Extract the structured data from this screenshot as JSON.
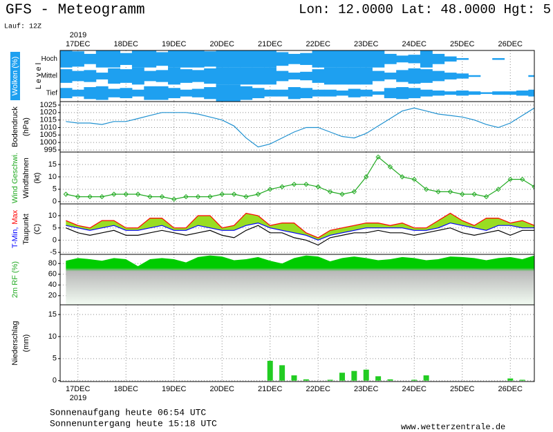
{
  "header": {
    "title": "GFS - Meteogramm",
    "location": "Lon: 12.0000 Lat: 48.0000 Hgt: 5",
    "run": "Lauf: 12Z"
  },
  "footer": {
    "sunrise": "Sonnenaufgang heute 06:54 UTC",
    "sunset": "Sonnenuntergang heute 15:18 UTC",
    "source": "www.wetterzentrale.de"
  },
  "time_axis": {
    "year": "2019",
    "xlim": [
      16.63,
      26.5
    ],
    "xticks": [
      {
        "value": 17,
        "label": "17DEC"
      },
      {
        "value": 18,
        "label": "18DEC"
      },
      {
        "value": 19,
        "label": "19DEC"
      },
      {
        "value": 20,
        "label": "20DEC"
      },
      {
        "value": 21,
        "label": "21DEC"
      },
      {
        "value": 22,
        "label": "22DEC"
      },
      {
        "value": 23,
        "label": "23DEC"
      },
      {
        "value": 24,
        "label": "24DEC"
      },
      {
        "value": 25,
        "label": "25DEC"
      },
      {
        "value": 26,
        "label": "26DEC"
      }
    ],
    "x": [
      16.75,
      17,
      17.25,
      17.5,
      17.75,
      18,
      18.25,
      18.5,
      18.75,
      19,
      19.25,
      19.5,
      19.75,
      20,
      20.25,
      20.5,
      20.75,
      21,
      21.25,
      21.5,
      21.75,
      22,
      22.25,
      22.5,
      22.75,
      23,
      23.25,
      23.5,
      23.75,
      24,
      24.25,
      24.5,
      24.75,
      25,
      25.25,
      25.5,
      25.75,
      26,
      26.25,
      26.5
    ]
  },
  "chart_data": [
    {
      "type": "cloud",
      "ylabel": [
        [
          {
            "text": "Wolken (%)",
            "color": "#ffffff",
            "background": "#1ea0f0"
          }
        ]
      ],
      "level_title": "L e v e l",
      "color": "#1ea0f0",
      "levels": [
        {
          "name": "Hoch",
          "values": [
            100,
            90,
            60,
            100,
            100,
            70,
            100,
            100,
            80,
            100,
            100,
            100,
            90,
            100,
            100,
            100,
            100,
            100,
            80,
            60,
            70,
            100,
            100,
            100,
            100,
            100,
            100,
            60,
            40,
            50,
            100,
            60,
            30,
            10,
            0,
            0,
            10,
            0,
            0,
            0
          ]
        },
        {
          "name": "Mittel",
          "values": [
            80,
            60,
            70,
            40,
            90,
            80,
            100,
            60,
            70,
            100,
            80,
            70,
            90,
            100,
            100,
            100,
            100,
            100,
            60,
            40,
            50,
            80,
            100,
            100,
            100,
            100,
            60,
            40,
            70,
            90,
            80,
            60,
            40,
            30,
            10,
            0,
            0,
            0,
            0,
            10
          ]
        },
        {
          "name": "Tief",
          "values": [
            60,
            40,
            70,
            80,
            50,
            60,
            40,
            80,
            80,
            60,
            40,
            50,
            70,
            100,
            100,
            80,
            60,
            40,
            40,
            70,
            60,
            40,
            40,
            30,
            50,
            40,
            20,
            60,
            70,
            60,
            40,
            30,
            20,
            30,
            20,
            10,
            20,
            20,
            30,
            40
          ]
        }
      ]
    },
    {
      "type": "line",
      "ylabel": [
        [
          {
            "text": "Bodendruck"
          }
        ],
        [
          {
            "text": "(hPa)"
          }
        ]
      ],
      "ylim": [
        993.6,
        1027.3
      ],
      "yticks": [
        995,
        1000,
        1005,
        1010,
        1015,
        1020,
        1025
      ],
      "grid": true,
      "series": [
        {
          "color": "#1e90d0",
          "values": [
            1014,
            1013,
            1013,
            1012,
            1014,
            1014,
            1016,
            1018,
            1020,
            1020,
            1020,
            1019,
            1017,
            1015,
            1011,
            1003,
            997,
            999,
            1003,
            1007,
            1010,
            1010,
            1007,
            1004,
            1003,
            1006,
            1011,
            1016,
            1021,
            1023,
            1021,
            1019,
            1018,
            1017,
            1015,
            1012,
            1010,
            1013,
            1018,
            1023
          ]
        }
      ]
    },
    {
      "type": "line",
      "ylabel": [
        [
          {
            "text": "Wind Geschwi.",
            "color": "#22aa22"
          }
        ],
        [
          {
            "text": "Windfahnen"
          }
        ],
        [
          {
            "text": "(kt)"
          }
        ]
      ],
      "ylim": [
        -0.9,
        20
      ],
      "yticks": [
        0,
        5,
        10,
        15
      ],
      "grid": true,
      "series": [
        {
          "color": "#22aa22",
          "marker": "diamond",
          "values": [
            3,
            2,
            2,
            2,
            3,
            3,
            3,
            2,
            2,
            1,
            2,
            2,
            2,
            3,
            3,
            2,
            3,
            5,
            6,
            7,
            7,
            6,
            4,
            3,
            4,
            10,
            18,
            14,
            10,
            9,
            5,
            4,
            4,
            3,
            3,
            2,
            5,
            9,
            9,
            6
          ]
        }
      ]
    },
    {
      "type": "range",
      "ylabel": [
        [
          {
            "text": "T-Min,",
            "color": "#0000ff"
          },
          {
            "text": "Max",
            "color": "#ff0000"
          }
        ],
        [
          {
            "text": "Taupunkt"
          }
        ],
        [
          {
            "text": "(C)"
          }
        ]
      ],
      "ylim": [
        -5.8,
        14.8
      ],
      "yticks": [
        -5,
        0,
        5,
        10
      ],
      "grid": true,
      "fill_between": [
        0,
        1
      ],
      "fill_color": "#99dd22",
      "series": [
        {
          "color": "#ff0000",
          "values": [
            8,
            6,
            5,
            8,
            8,
            5,
            5,
            9,
            9,
            5,
            5,
            10,
            10,
            5,
            6,
            11,
            10,
            6,
            7,
            7,
            3,
            1,
            4,
            5,
            6,
            7,
            7,
            6,
            7,
            5,
            5,
            8,
            11,
            8,
            6,
            9,
            9,
            7,
            8,
            6
          ]
        },
        {
          "color": "#0000ff",
          "values": [
            6,
            5,
            4,
            5,
            6,
            4,
            4,
            5,
            6,
            4,
            4,
            6,
            5,
            4,
            4,
            6,
            7,
            5,
            4,
            3,
            2,
            0,
            2,
            3,
            4,
            5,
            5,
            5,
            5,
            4,
            4,
            5,
            7,
            6,
            5,
            4,
            6,
            6,
            5,
            5
          ]
        },
        {
          "color": "#000000",
          "values": [
            5,
            3,
            2,
            3,
            4,
            2,
            2,
            3,
            4,
            3,
            2,
            3,
            4,
            2,
            1,
            4,
            6,
            3,
            3,
            1,
            0,
            -2,
            1,
            2,
            3,
            3,
            4,
            3,
            3,
            2,
            3,
            4,
            5,
            3,
            2,
            3,
            4,
            2,
            4,
            4
          ]
        }
      ]
    },
    {
      "type": "area",
      "ylabel": [
        [
          {
            "text": "2m RF (%)",
            "color": "#22aa22"
          }
        ]
      ],
      "ylim": [
        3,
        97
      ],
      "yticks": [
        20,
        40,
        60,
        80
      ],
      "grid": true,
      "series": [
        {
          "color": "#00cc00",
          "values": [
            85,
            90,
            88,
            85,
            90,
            88,
            75,
            88,
            90,
            88,
            82,
            92,
            95,
            93,
            86,
            88,
            92,
            85,
            80,
            90,
            95,
            93,
            84,
            90,
            93,
            90,
            86,
            88,
            92,
            90,
            86,
            88,
            93,
            92,
            90,
            86,
            90,
            92,
            88,
            95
          ]
        }
      ]
    },
    {
      "type": "bar",
      "ylabel": [
        [
          {
            "text": "Niederschlag"
          }
        ],
        [
          {
            "text": "(mm)"
          }
        ]
      ],
      "ylim": [
        -0.2,
        17.2
      ],
      "yticks": [
        0,
        5,
        10,
        15
      ],
      "grid": true,
      "series": [
        {
          "color": "#22cc22",
          "values": [
            0,
            0,
            0,
            0,
            0,
            0,
            0,
            0,
            0,
            0,
            0,
            0,
            0,
            0,
            0,
            0,
            0,
            4.5,
            3.5,
            1.2,
            0.3,
            0,
            0.2,
            1.8,
            2.2,
            2.5,
            1.0,
            0.3,
            0,
            0.2,
            1.2,
            0,
            0,
            0,
            0,
            0,
            0,
            0.5,
            0.2,
            0
          ]
        }
      ]
    }
  ]
}
